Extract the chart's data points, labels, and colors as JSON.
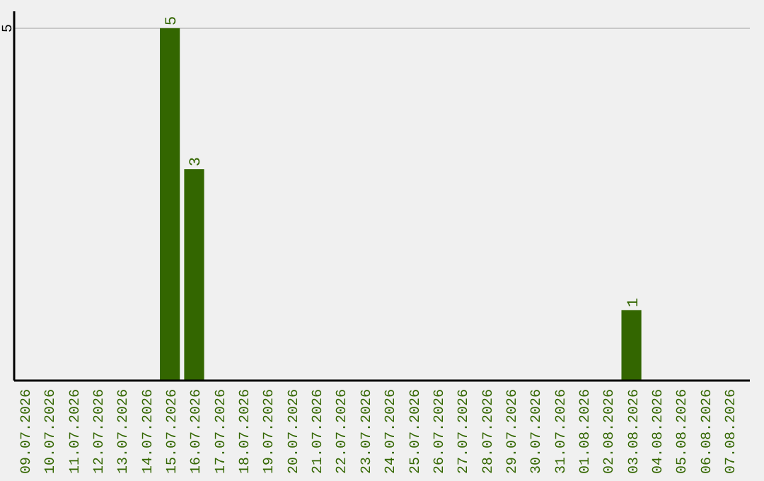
{
  "chart_data": {
    "type": "bar",
    "categories": [
      "09.07.2026",
      "10.07.2026",
      "11.07.2026",
      "12.07.2026",
      "13.07.2026",
      "14.07.2026",
      "15.07.2026",
      "16.07.2026",
      "17.07.2026",
      "18.07.2026",
      "19.07.2026",
      "20.07.2026",
      "21.07.2026",
      "22.07.2026",
      "23.07.2026",
      "24.07.2026",
      "25.07.2026",
      "26.07.2026",
      "27.07.2026",
      "28.07.2026",
      "29.07.2026",
      "30.07.2026",
      "31.07.2026",
      "01.08.2026",
      "02.08.2026",
      "03.08.2026",
      "04.08.2026",
      "05.08.2026",
      "06.08.2026",
      "07.08.2026"
    ],
    "values": [
      0,
      0,
      0,
      0,
      0,
      0,
      5,
      3,
      0,
      0,
      0,
      0,
      0,
      0,
      0,
      0,
      0,
      0,
      0,
      0,
      0,
      0,
      0,
      0,
      0,
      1,
      0,
      0,
      0,
      0
    ],
    "value_labels": [
      null,
      null,
      null,
      null,
      null,
      null,
      "5",
      "3",
      null,
      null,
      null,
      null,
      null,
      null,
      null,
      null,
      null,
      null,
      null,
      null,
      null,
      null,
      null,
      null,
      null,
      "1",
      null,
      null,
      null,
      null
    ],
    "color": "#336600",
    "ylim": [
      0,
      5.24
    ],
    "yticks": [
      5
    ],
    "grid": "y"
  }
}
